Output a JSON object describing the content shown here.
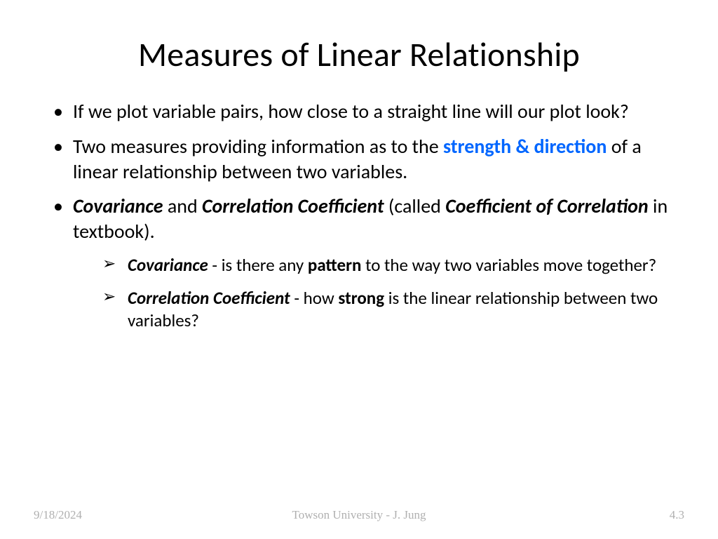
{
  "colors": {
    "background": "#ffffff",
    "text": "#000000",
    "highlight": "#0066ff",
    "footer": "#b0b0b0"
  },
  "typography": {
    "title_fontsize": 48,
    "bullet_fontsize": 28,
    "subbullet_fontsize": 25,
    "footer_fontsize": 17,
    "body_family": "Calibri",
    "footer_family": "Times New Roman"
  },
  "title": "Measures of Linear Relationship",
  "bullets": {
    "b1": "If we plot variable pairs, how close to a straight line will our plot look?",
    "b2_a": "Two measures providing information as to the ",
    "b2_hl": "strength & direction",
    "b2_b": " of a linear relationship between two variables.",
    "b3_a": "Covariance",
    "b3_b": " and ",
    "b3_c": "Correlation Coefficient",
    "b3_d": " (called ",
    "b3_e": "Coefficient of Correlation",
    "b3_f": " in textbook).",
    "s1_a": "Covariance",
    "s1_b": " - is there any ",
    "s1_c": "pattern",
    "s1_d": " to the way two variables move together?",
    "s2_a": "Correlation Coefficient",
    "s2_b": " - how ",
    "s2_c": "strong",
    "s2_d": " is the linear relationship between two variables?"
  },
  "footer": {
    "date": "9/18/2024",
    "center": "Towson University - J. Jung",
    "page": "4.3"
  }
}
